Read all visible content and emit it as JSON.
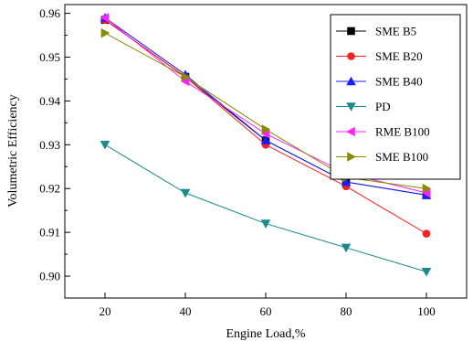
{
  "chart_data": {
    "type": "line",
    "xlabel": "Engine Load,%",
    "ylabel": "Volumetric Efficiency",
    "x": [
      20,
      40,
      60,
      80,
      100
    ],
    "xticks": [
      "20",
      "40",
      "60",
      "80",
      "100"
    ],
    "xlim": [
      10,
      110
    ],
    "ylim": [
      0.895,
      0.962
    ],
    "yticks": [
      "0.90",
      "0.91",
      "0.92",
      "0.93",
      "0.94",
      "0.95",
      "0.96"
    ],
    "grid": false,
    "legend_position": "top-right",
    "series": [
      {
        "name": "SME B5",
        "color": "#000000",
        "marker": "square",
        "values": [
          0.9585,
          0.9455,
          0.931,
          0.9215,
          0.9185
        ]
      },
      {
        "name": "SME B20",
        "color": "#ff2020",
        "marker": "circle",
        "values": [
          0.9585,
          0.9455,
          0.93,
          0.9205,
          0.9097
        ]
      },
      {
        "name": "SME B40",
        "color": "#1c1cff",
        "marker": "triangle-up",
        "values": [
          0.959,
          0.946,
          0.931,
          0.9215,
          0.9185
        ]
      },
      {
        "name": "PD",
        "color": "#1a8a8a",
        "marker": "triangle-down",
        "values": [
          0.93,
          0.919,
          0.912,
          0.9065,
          0.901
        ]
      },
      {
        "name": "RME B100",
        "color": "#ff22ff",
        "marker": "triangle-left",
        "values": [
          0.959,
          0.9445,
          0.9325,
          0.9235,
          0.919
        ]
      },
      {
        "name": "SME B100",
        "color": "#8a8a00",
        "marker": "triangle-right",
        "values": [
          0.9555,
          0.9455,
          0.9335,
          0.9225,
          0.92
        ]
      }
    ]
  }
}
